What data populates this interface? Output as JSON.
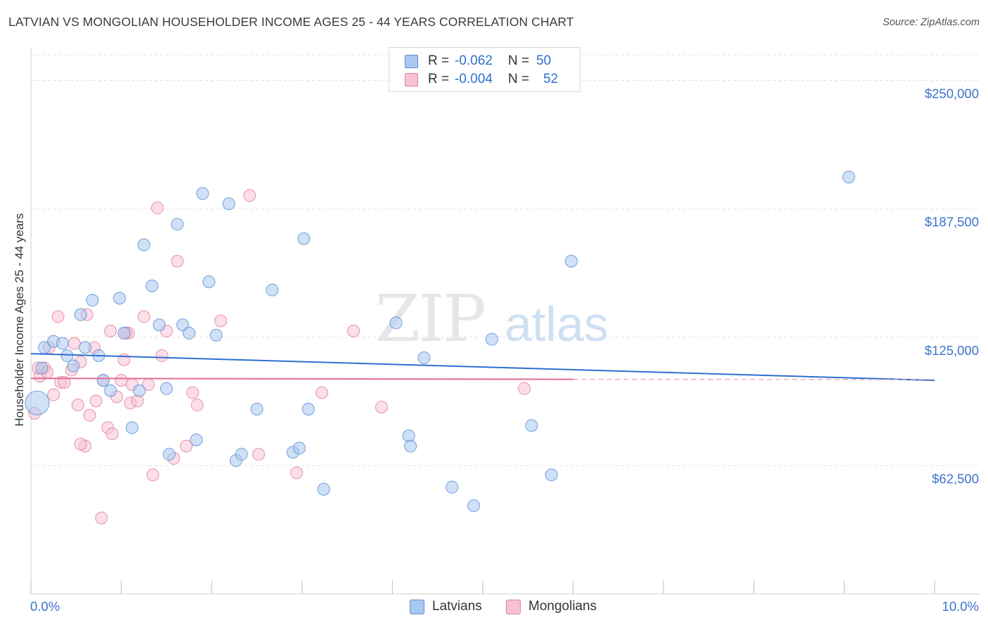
{
  "title": "LATVIAN VS MONGOLIAN HOUSEHOLDER INCOME AGES 25 - 44 YEARS CORRELATION CHART",
  "source": "Source: ZipAtlas.com",
  "watermark": "ZIPatlas",
  "legend": {
    "rows": [
      {
        "r_label": "R =",
        "r_value": "-0.062",
        "n_label": "N =",
        "n_value": "50",
        "color": "#a9c8f0",
        "border": "#5b8fd6"
      },
      {
        "r_label": "R =",
        "r_value": "-0.004",
        "n_label": "N =",
        "n_value": "52",
        "color": "#f7c3d4",
        "border": "#e07a9b"
      }
    ]
  },
  "bottom_legend": [
    {
      "label": "Latvians",
      "color": "#a9c8f0",
      "border": "#5b8fd6"
    },
    {
      "label": "Mongolians",
      "color": "#f7c3d4",
      "border": "#e07a9b"
    }
  ],
  "chart_data": {
    "type": "scatter",
    "title": "LATVIAN VS MONGOLIAN HOUSEHOLDER INCOME AGES 25 - 44 YEARS CORRELATION CHART",
    "xlabel": "",
    "ylabel": "Householder Income Ages 25 - 44 years",
    "xlim": [
      0,
      10
    ],
    "ylim": [
      0,
      262500
    ],
    "x_tick_labels": [
      "0.0%",
      "10.0%"
    ],
    "y_ticks": [
      62500,
      125000,
      187500,
      250000
    ],
    "y_tick_labels": [
      "$62,500",
      "$125,000",
      "$187,500",
      "$250,000"
    ],
    "grid": true,
    "legend_position": "top-center",
    "series": [
      {
        "name": "Latvians",
        "color": "#5b8fd6",
        "fill": "#a9c8f0",
        "trend": {
          "x0": 0.0,
          "y0": 117000,
          "x1": 10.0,
          "y1": 104000
        },
        "points": [
          [
            0.07,
            93000
          ],
          [
            0.12,
            110000
          ],
          [
            0.15,
            120000
          ],
          [
            0.25,
            123000
          ],
          [
            0.35,
            122000
          ],
          [
            0.4,
            116000
          ],
          [
            0.47,
            111000
          ],
          [
            0.55,
            136000
          ],
          [
            0.6,
            120000
          ],
          [
            0.68,
            143000
          ],
          [
            0.75,
            116000
          ],
          [
            0.8,
            104000
          ],
          [
            0.88,
            99000
          ],
          [
            0.98,
            144000
          ],
          [
            1.03,
            127000
          ],
          [
            1.12,
            81000
          ],
          [
            1.2,
            99000
          ],
          [
            1.25,
            170000
          ],
          [
            1.34,
            150000
          ],
          [
            1.42,
            131000
          ],
          [
            1.5,
            100000
          ],
          [
            1.53,
            68000
          ],
          [
            1.62,
            180000
          ],
          [
            1.68,
            131000
          ],
          [
            1.75,
            127000
          ],
          [
            1.83,
            75000
          ],
          [
            1.9,
            195000
          ],
          [
            1.97,
            152000
          ],
          [
            2.05,
            126000
          ],
          [
            2.19,
            190000
          ],
          [
            2.27,
            65000
          ],
          [
            2.33,
            68000
          ],
          [
            2.5,
            90000
          ],
          [
            2.67,
            148000
          ],
          [
            2.9,
            69000
          ],
          [
            2.97,
            71000
          ],
          [
            3.02,
            173000
          ],
          [
            3.07,
            90000
          ],
          [
            3.24,
            51000
          ],
          [
            4.04,
            132000
          ],
          [
            4.18,
            77000
          ],
          [
            4.2,
            72000
          ],
          [
            4.35,
            115000
          ],
          [
            4.66,
            52000
          ],
          [
            4.9,
            43000
          ],
          [
            5.1,
            124000
          ],
          [
            5.54,
            82000
          ],
          [
            5.76,
            58000
          ],
          [
            5.98,
            162000
          ],
          [
            9.05,
            203000
          ]
        ]
      },
      {
        "name": "Mongolians",
        "color": "#e07a9b",
        "fill": "#f7c3d4",
        "trend": {
          "x0": 0.0,
          "y0": 105000,
          "x1": 6.0,
          "y1": 104500
        },
        "points": [
          [
            0.04,
            88000
          ],
          [
            0.1,
            106000
          ],
          [
            0.15,
            110000
          ],
          [
            0.2,
            120000
          ],
          [
            0.25,
            97000
          ],
          [
            0.3,
            135000
          ],
          [
            0.33,
            103000
          ],
          [
            0.37,
            103000
          ],
          [
            0.45,
            109000
          ],
          [
            0.48,
            122000
          ],
          [
            0.52,
            92000
          ],
          [
            0.55,
            113000
          ],
          [
            0.6,
            72000
          ],
          [
            0.62,
            136000
          ],
          [
            0.65,
            87000
          ],
          [
            0.7,
            120000
          ],
          [
            0.72,
            94000
          ],
          [
            0.78,
            37000
          ],
          [
            0.8,
            104000
          ],
          [
            0.85,
            81000
          ],
          [
            0.88,
            128000
          ],
          [
            0.9,
            78000
          ],
          [
            0.95,
            96000
          ],
          [
            1.0,
            104000
          ],
          [
            1.03,
            114000
          ],
          [
            1.08,
            127000
          ],
          [
            1.1,
            93000
          ],
          [
            1.12,
            102000
          ],
          [
            1.18,
            94000
          ],
          [
            1.25,
            135000
          ],
          [
            1.3,
            102000
          ],
          [
            1.35,
            58000
          ],
          [
            1.4,
            188000
          ],
          [
            1.45,
            116000
          ],
          [
            1.5,
            128000
          ],
          [
            1.58,
            66000
          ],
          [
            1.62,
            162000
          ],
          [
            1.72,
            72000
          ],
          [
            1.79,
            98000
          ],
          [
            1.84,
            92000
          ],
          [
            2.1,
            133000
          ],
          [
            2.42,
            194000
          ],
          [
            2.52,
            68000
          ],
          [
            2.94,
            59000
          ],
          [
            3.22,
            98000
          ],
          [
            3.57,
            128000
          ],
          [
            3.88,
            91000
          ],
          [
            5.46,
            100000
          ],
          [
            0.08,
            110000
          ],
          [
            0.18,
            108000
          ],
          [
            0.55,
            73000
          ],
          [
            1.05,
            127000
          ]
        ]
      }
    ]
  }
}
